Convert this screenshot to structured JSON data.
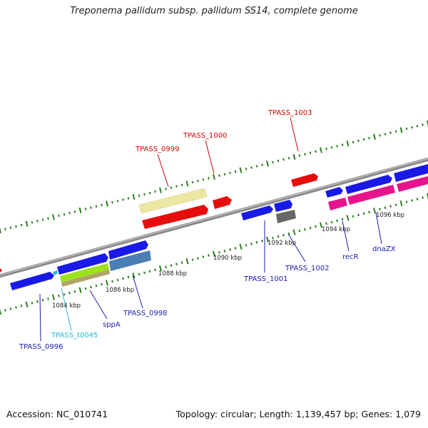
{
  "title": "Treponema pallidum subsp. pallidum SS14, complete genome",
  "footer": {
    "accession": "Accession: NC_010741",
    "summary": "Topology: circular; Length: 1,139,457 bp; Genes: 1,079"
  },
  "colors": {
    "backbone": "#8a8a8a",
    "ticks": "#2e7d1f",
    "blue_gene": "#1a1ae6",
    "red_gene": "#e60d0d",
    "pink_gene": "#e6148c",
    "cream_gene": "#ece7a2",
    "green_gene": "#9be21c",
    "tan_gene": "#b0a46a",
    "steel_gene": "#4a7fb5",
    "gray_gene": "#666666",
    "label_blue": "#1a1ab0",
    "label_red": "#d40000",
    "label_cyan": "#29b6d6"
  },
  "scale_labels": [
    {
      "text": "1084 kbp"
    },
    {
      "text": "1086 kbp"
    },
    {
      "text": "1088 kbp"
    },
    {
      "text": "1090 kbp"
    },
    {
      "text": "1092 kbp"
    },
    {
      "text": "1094 kbp"
    },
    {
      "text": "1096 kbp"
    }
  ],
  "gene_labels": [
    {
      "text": "TPASS_0996",
      "color": "blue"
    },
    {
      "text": "TPASS_t0045",
      "color": "cyan"
    },
    {
      "text": "sppA",
      "color": "blue"
    },
    {
      "text": "TPASS_0998",
      "color": "blue"
    },
    {
      "text": "TPASS_0999",
      "color": "red"
    },
    {
      "text": "TPASS_1000",
      "color": "red"
    },
    {
      "text": "TPASS_1003",
      "color": "red"
    },
    {
      "text": "TPASS_1001",
      "color": "blue"
    },
    {
      "text": "TPASS_1002",
      "color": "blue"
    },
    {
      "text": "recR",
      "color": "blue"
    },
    {
      "text": "dnaZX",
      "color": "blue"
    }
  ]
}
